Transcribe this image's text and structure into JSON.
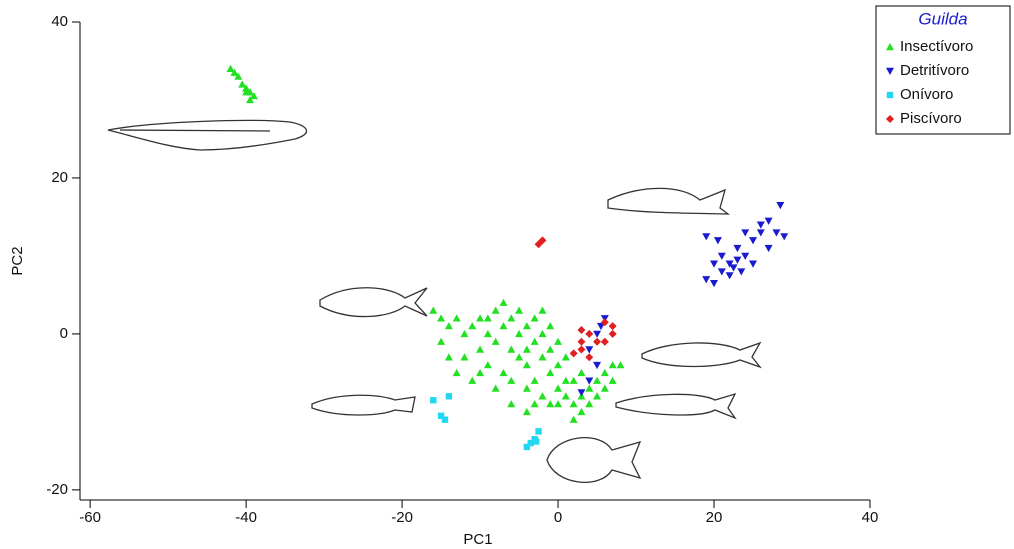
{
  "chart_data": {
    "type": "scatter",
    "x_label": "PC1",
    "y_label": "PC2",
    "xlim": [
      -61.3,
      40
    ],
    "ylim": [
      -21.3,
      40
    ],
    "xticks": [
      -60,
      -40,
      -20,
      0,
      20,
      40
    ],
    "yticks": [
      -20,
      0,
      20,
      40
    ],
    "legend_title": "Guilda",
    "legend": "top-right",
    "series": [
      {
        "name": "Insectívoro",
        "color": "#22e022",
        "marker": "triangle-up",
        "x": [
          -42,
          -41.5,
          -41,
          -40.5,
          -40,
          -39.5,
          -39,
          -40,
          -39.5,
          -16,
          -15,
          -14,
          -13,
          -12,
          -12,
          -11,
          -10,
          -10,
          -9,
          -9,
          -8,
          -8,
          -7,
          -7,
          -7,
          -6,
          -6,
          -6,
          -5,
          -5,
          -5,
          -4,
          -4,
          -4,
          -3,
          -3,
          -3,
          -3,
          -2,
          -2,
          -2,
          -2,
          -1,
          -1,
          -1,
          0,
          0,
          0,
          1,
          1,
          1,
          2,
          2,
          2,
          3,
          3,
          4,
          4,
          5,
          5,
          6,
          6,
          7,
          7,
          8,
          -13,
          -11,
          -8,
          -14,
          -6,
          -4,
          -9,
          -1,
          -15,
          -10,
          -4,
          3,
          0
        ],
        "y": [
          34,
          33.5,
          33,
          32,
          31.5,
          31,
          30.5,
          31,
          30,
          3,
          -1,
          1,
          2,
          0,
          -3,
          1,
          2,
          -2,
          0,
          -4,
          3,
          -1,
          4,
          1,
          -5,
          2,
          -2,
          -6,
          3,
          0,
          -3,
          1,
          -4,
          -7,
          2,
          -1,
          -6,
          -9,
          3,
          0,
          -3,
          -8,
          -2,
          -5,
          -9,
          -4,
          -7,
          -9,
          -3,
          -6,
          -8,
          -6,
          -9,
          -11,
          -8,
          -10,
          -7,
          -9,
          -6,
          -8,
          -5,
          -7,
          -4,
          -6,
          -4,
          -5,
          -6,
          -7,
          -3,
          -9,
          -10,
          2,
          1,
          2,
          -5,
          -2,
          -5,
          -1
        ]
      },
      {
        "name": "Detritívoro",
        "color": "#1a1ad0",
        "marker": "triangle-down",
        "x": [
          19,
          20,
          20,
          21,
          21,
          22,
          22,
          23,
          23,
          24,
          24,
          25,
          25,
          26,
          26,
          27,
          27,
          28,
          28.5,
          29,
          20.5,
          19,
          22.5,
          23.5,
          5,
          6,
          5.5,
          5,
          4,
          3,
          4
        ],
        "y": [
          7,
          6.5,
          9,
          8,
          10,
          9,
          7.5,
          9.5,
          11,
          10,
          13,
          12,
          9,
          13,
          14,
          11,
          14.5,
          13,
          16.5,
          12.5,
          12,
          12.5,
          8.5,
          8,
          0,
          2,
          1,
          -4,
          -6,
          -7.5,
          -2
        ]
      },
      {
        "name": "Onívoro",
        "color": "#22d8f0",
        "marker": "square",
        "x": [
          -16,
          -15,
          -14.5,
          -14,
          -4,
          -3.5,
          -3,
          -2.5,
          -2.8
        ],
        "y": [
          -8.5,
          -10.5,
          -11,
          -8,
          -14.5,
          -14,
          -13.5,
          -12.5,
          -13.8
        ]
      },
      {
        "name": "Piscívoro",
        "color": "#e02020",
        "marker": "diamond",
        "x": [
          -2.5,
          -2,
          3,
          3,
          2,
          4,
          5,
          6,
          7,
          7,
          6,
          4,
          3
        ],
        "y": [
          11.5,
          12,
          0.5,
          -1,
          -2.5,
          0,
          -1,
          1.5,
          1,
          0,
          -1,
          -3,
          -2
        ]
      }
    ]
  }
}
